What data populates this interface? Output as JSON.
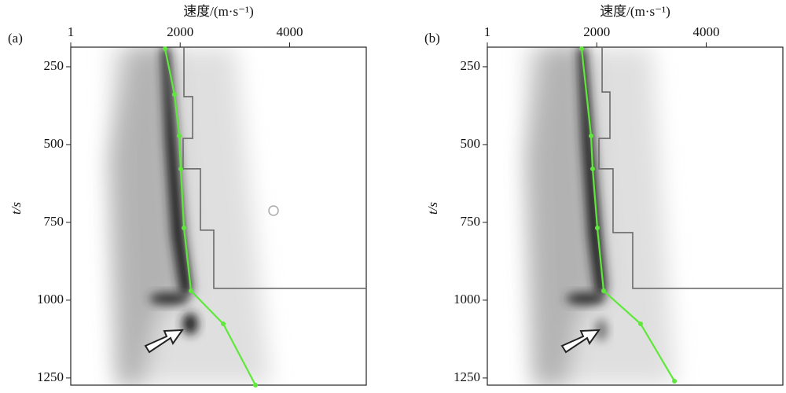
{
  "chart_data": [
    {
      "type": "line",
      "panel_label": "(a)",
      "title": "速度/(m·s⁻¹)",
      "y_label": "t/s",
      "xlim": [
        1,
        5400
      ],
      "xticks": [
        1,
        2000,
        4000
      ],
      "ylim": [
        187,
        1273
      ],
      "yticks": [
        250,
        500,
        750,
        1000,
        1250
      ],
      "y_inverted": true,
      "series": [
        {
          "color": "#5ee83a",
          "markers": true,
          "x": [
            1724,
            1896,
            1983,
            2011,
            2069,
            2198,
            2787,
            3376
          ],
          "y": [
            192,
            339,
            472,
            578,
            768,
            970,
            1076,
            1273
          ]
        },
        {
          "color": "#6b6b6b",
          "markers": false,
          "x": [
            2069,
            2069,
            2227,
            2227,
            2054,
            2054,
            2370,
            2370,
            2614,
            2614,
            5400
          ],
          "y": [
            187,
            346,
            346,
            480,
            480,
            578,
            578,
            775,
            775,
            962,
            962
          ]
        }
      ]
    },
    {
      "type": "line",
      "panel_label": "(b)",
      "title": "速度/(m·s⁻¹)",
      "y_label": "t/s",
      "xlim": [
        1,
        5400
      ],
      "xticks": [
        1,
        2000,
        4000
      ],
      "ylim": [
        187,
        1273
      ],
      "yticks": [
        250,
        500,
        750,
        1000,
        1250
      ],
      "y_inverted": true,
      "series": [
        {
          "color": "#5ee83a",
          "markers": true,
          "x": [
            1724,
            1896,
            1925,
            2011,
            2126,
            2801,
            3419
          ],
          "y": [
            192,
            472,
            578,
            768,
            970,
            1076,
            1260
          ]
        },
        {
          "color": "#6b6b6b",
          "markers": false,
          "x": [
            2098,
            2098,
            2241,
            2241,
            2040,
            2040,
            2298,
            2298,
            2657,
            2657,
            5400
          ],
          "y": [
            187,
            331,
            331,
            480,
            480,
            578,
            578,
            783,
            783,
            962,
            962
          ]
        }
      ]
    }
  ]
}
